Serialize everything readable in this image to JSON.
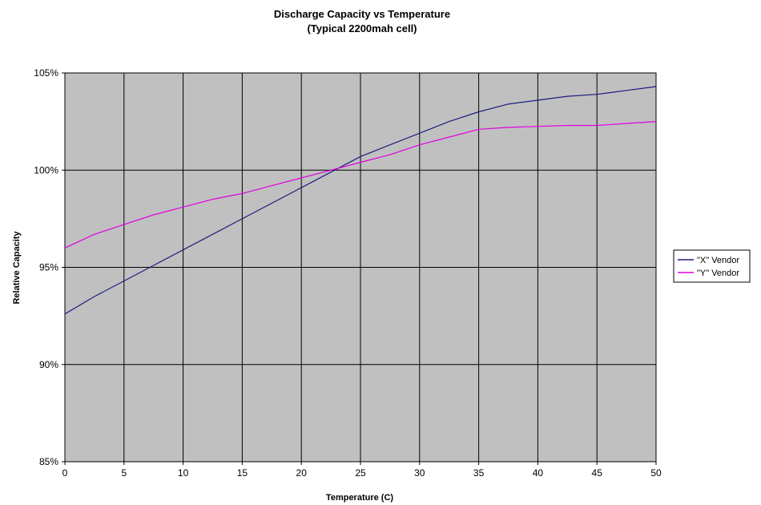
{
  "chart_data": {
    "type": "line",
    "title": "Discharge Capacity vs Temperature",
    "subtitle": "(Typical 2200mah cell)",
    "xlabel": "Temperature (C)",
    "ylabel": "Relative Capacity",
    "xlim": [
      0,
      50
    ],
    "ylim": [
      85,
      105
    ],
    "x_ticks": [
      0,
      5,
      10,
      15,
      20,
      25,
      30,
      35,
      40,
      45,
      50
    ],
    "y_ticks": [
      85,
      90,
      95,
      100,
      105
    ],
    "y_tick_labels": [
      "85%",
      "90%",
      "95%",
      "100%",
      "105%"
    ],
    "grid": true,
    "legend_position": "right",
    "plot_background": "#c0c0c0",
    "x": [
      0,
      2.5,
      5,
      7.5,
      10,
      12.5,
      15,
      17.5,
      20,
      22.5,
      25,
      27.5,
      30,
      32.5,
      35,
      37.5,
      40,
      42.5,
      45,
      47.5,
      50
    ],
    "series": [
      {
        "name": "\"X\" Vendor",
        "color": "#1c1c80",
        "values": [
          92.6,
          93.5,
          94.3,
          95.1,
          95.9,
          96.7,
          97.5,
          98.3,
          99.1,
          99.9,
          100.7,
          101.3,
          101.9,
          102.5,
          103.0,
          103.4,
          103.6,
          103.8,
          103.9,
          104.1,
          104.3
        ]
      },
      {
        "name": "\"Y\" Vendor",
        "color": "#e000e0",
        "values": [
          96.0,
          96.7,
          97.2,
          97.7,
          98.1,
          98.5,
          98.8,
          99.2,
          99.6,
          100.0,
          100.4,
          100.8,
          101.3,
          101.7,
          102.1,
          102.2,
          102.25,
          102.3,
          102.3,
          102.4,
          102.5
        ]
      }
    ]
  }
}
